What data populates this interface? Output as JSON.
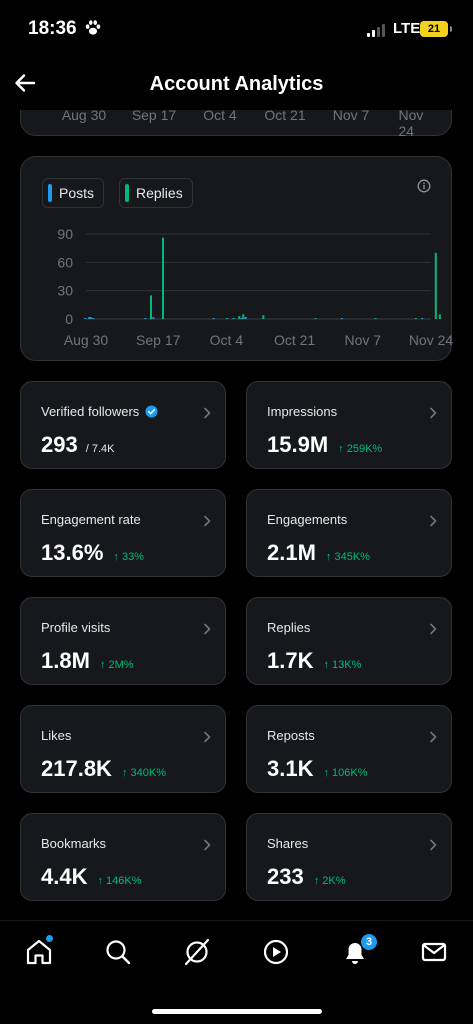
{
  "status_bar": {
    "time": "18:36",
    "network": "LTE",
    "battery": "21"
  },
  "header": {
    "title": "Account Analytics",
    "back_icon": "arrow-left-icon"
  },
  "top_chart": {
    "x_labels": [
      "Aug 30",
      "Sep 17",
      "Oct 4",
      "Oct 21",
      "Nov 7",
      "Nov 24"
    ]
  },
  "chart": {
    "legend": [
      {
        "label": "Posts",
        "color": "#1d9bf0"
      },
      {
        "label": "Replies",
        "color": "#00ba7c"
      }
    ],
    "info_icon": "info-icon"
  },
  "chart_data": {
    "type": "bar",
    "title": "",
    "xlabel": "",
    "ylabel": "",
    "ylim": [
      0,
      90
    ],
    "y_ticks": [
      "90",
      "60",
      "30",
      "0"
    ],
    "x_tick_labels": [
      "Aug 30",
      "Sep 17",
      "Oct 4",
      "Oct 21",
      "Nov 7",
      "Nov 24"
    ],
    "grid": true,
    "legend_position": "top-left",
    "series": [
      {
        "name": "Posts",
        "color": "#1d9bf0",
        "points": [
          {
            "x": "Aug 30",
            "y": 1
          },
          {
            "x": "Aug 31",
            "y": 2
          },
          {
            "x": "Sep 1",
            "y": 1
          },
          {
            "x": "Sep 14",
            "y": 1
          },
          {
            "x": "Sep 16",
            "y": 2
          },
          {
            "x": "Oct 1",
            "y": 1
          },
          {
            "x": "Oct 6",
            "y": 1
          },
          {
            "x": "Oct 8",
            "y": 1
          },
          {
            "x": "Oct 9",
            "y": 2
          },
          {
            "x": "Nov 2",
            "y": 1
          },
          {
            "x": "Nov 22",
            "y": 1
          }
        ]
      },
      {
        "name": "Replies",
        "color": "#00ba7c",
        "points": [
          {
            "x": "Aug 31",
            "y": 2
          },
          {
            "x": "Sep 15",
            "y": 25
          },
          {
            "x": "Sep 18",
            "y": 86
          },
          {
            "x": "Oct 4",
            "y": 1
          },
          {
            "x": "Oct 7",
            "y": 3
          },
          {
            "x": "Oct 8",
            "y": 5
          },
          {
            "x": "Oct 13",
            "y": 4
          },
          {
            "x": "Oct 26",
            "y": 1
          },
          {
            "x": "Nov 10",
            "y": 1
          },
          {
            "x": "Nov 20",
            "y": 1
          },
          {
            "x": "Nov 25",
            "y": 70
          },
          {
            "x": "Nov 26",
            "y": 5
          }
        ]
      }
    ]
  },
  "metrics": [
    {
      "label": "Verified followers",
      "value": "293",
      "sub": "/ 7.4K",
      "change": "",
      "verified": true
    },
    {
      "label": "Impressions",
      "value": "15.9M",
      "sub": "",
      "change": "↑ 259K%"
    },
    {
      "label": "Engagement rate",
      "value": "13.6%",
      "sub": "",
      "change": "↑ 33%"
    },
    {
      "label": "Engagements",
      "value": "2.1M",
      "sub": "",
      "change": "↑ 345K%"
    },
    {
      "label": "Profile visits",
      "value": "1.8M",
      "sub": "",
      "change": "↑ 2M%"
    },
    {
      "label": "Replies",
      "value": "1.7K",
      "sub": "",
      "change": "↑ 13K%"
    },
    {
      "label": "Likes",
      "value": "217.8K",
      "sub": "",
      "change": "↑ 340K%"
    },
    {
      "label": "Reposts",
      "value": "3.1K",
      "sub": "",
      "change": "↑ 106K%"
    },
    {
      "label": "Bookmarks",
      "value": "4.4K",
      "sub": "",
      "change": "↑ 146K%"
    },
    {
      "label": "Shares",
      "value": "233",
      "sub": "",
      "change": "↑ 2K%"
    }
  ],
  "bottom_nav": {
    "items": [
      "home-icon",
      "search-icon",
      "grok-icon",
      "video-icon",
      "notifications-icon",
      "messages-icon"
    ],
    "notification_count": "3"
  }
}
